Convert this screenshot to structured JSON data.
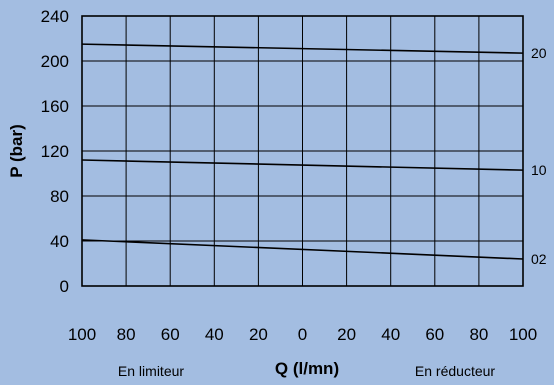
{
  "chart_data": {
    "type": "line",
    "ylabel": "P (bar)",
    "xlabel": "Q (l/mn)",
    "x_left_label": "En limiteur",
    "x_right_label": "En réducteur",
    "ylim": [
      0,
      240
    ],
    "yticks": [
      "0",
      "40",
      "80",
      "120",
      "160",
      "200",
      "240"
    ],
    "xlim": [
      -100,
      100
    ],
    "xticks": [
      "100",
      "80",
      "60",
      "40",
      "20",
      "0",
      "20",
      "40",
      "60",
      "80",
      "100"
    ],
    "grid": true,
    "background": "#a3bde1",
    "line_color": "#000000",
    "series": [
      {
        "name": "20",
        "x": [
          -100,
          100
        ],
        "y": [
          215,
          207
        ]
      },
      {
        "name": "10",
        "x": [
          -100,
          100
        ],
        "y": [
          112,
          103
        ]
      },
      {
        "name": "02",
        "x": [
          -100,
          100
        ],
        "y": [
          41,
          24
        ]
      }
    ]
  }
}
